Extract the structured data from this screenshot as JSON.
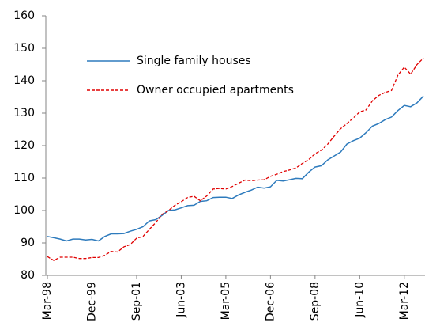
{
  "chart_data": {
    "type": "line",
    "categories": [
      "Mar-98",
      null,
      null,
      null,
      null,
      null,
      null,
      "Dec-99",
      null,
      null,
      null,
      null,
      null,
      null,
      "Sep-01",
      null,
      null,
      null,
      null,
      null,
      null,
      "Jun-03",
      null,
      null,
      null,
      null,
      null,
      null,
      "Mar-05",
      null,
      null,
      null,
      null,
      null,
      null,
      "Dec-06",
      null,
      null,
      null,
      null,
      null,
      null,
      "Sep-08",
      null,
      null,
      null,
      null,
      null,
      null,
      "Jun-10",
      null,
      null,
      null,
      null,
      null,
      null,
      "Mar-12",
      null,
      null,
      null
    ],
    "series": [
      {
        "name": "Single family houses",
        "color": "#2e7bbd",
        "style": "solid",
        "values": [
          92,
          91.6,
          91.2,
          90.6,
          91.2,
          91.2,
          90.9,
          91.1,
          90.6,
          92,
          92.8,
          92.8,
          92.9,
          93.6,
          94.2,
          95,
          96.8,
          97.2,
          98.5,
          100,
          100.2,
          100.8,
          101.5,
          101.6,
          102.8,
          103,
          104,
          104.1,
          104.1,
          103.7,
          104.8,
          105.6,
          106.3,
          107.2,
          106.9,
          107.3,
          109.3,
          109.1,
          109.5,
          109.9,
          109.8,
          111.8,
          113.4,
          113.8,
          115.6,
          116.8,
          118,
          120.5,
          121.5,
          122.3,
          124,
          126,
          126.8,
          128,
          128.8,
          130.8,
          132.4,
          132,
          133.2,
          135.3
        ]
      },
      {
        "name": "Owner occupied apartments",
        "color": "#e00000",
        "style": "dashed",
        "values": [
          85.8,
          84.6,
          85.6,
          85.6,
          85.6,
          85.2,
          85.2,
          85.5,
          85.5,
          86.2,
          87.4,
          87.2,
          88.8,
          89.5,
          91.5,
          92,
          94.2,
          96.3,
          98.8,
          100,
          101.6,
          102.7,
          104,
          104.4,
          103,
          104.5,
          106.6,
          106.8,
          106.6,
          107.4,
          108.4,
          109.4,
          109.2,
          109.4,
          109.5,
          110.5,
          111.2,
          112,
          112.5,
          113.1,
          114.5,
          115.7,
          117.5,
          118.6,
          120.5,
          122.9,
          125.2,
          126.8,
          128.5,
          130.4,
          131,
          133.8,
          135.5,
          136.4,
          137,
          141.7,
          144.2,
          142,
          145,
          147
        ]
      }
    ],
    "ylim": [
      80,
      160
    ],
    "yticks": [
      80,
      90,
      100,
      110,
      120,
      130,
      140,
      150,
      160
    ],
    "grid": false,
    "legend": "upper-left"
  }
}
